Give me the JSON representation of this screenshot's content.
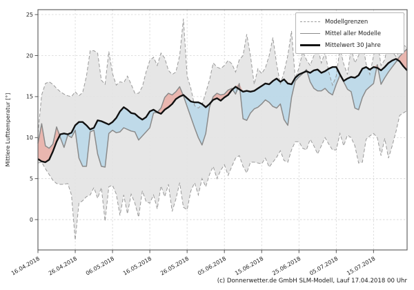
{
  "figure": {
    "y_axis_label": "Mittlere Lufttemperatur [°]",
    "caption": "(c) Donnerwetter.de GmbH SLM-Modell, Lauf 17.04.2018 00 Uhr"
  },
  "legend": {
    "position": "top-right",
    "items": [
      {
        "label": "Modellgrenzen",
        "series": "bounds",
        "swatch": "dashed-gray-line"
      },
      {
        "label": "Mittel aller Modelle",
        "series": "model_mean",
        "swatch": "solid-gray-line"
      },
      {
        "label": "Mittelwert 30 Jahre",
        "series": "mean_30y",
        "swatch": "thick-black-line"
      }
    ]
  },
  "colors": {
    "grid": "#d4d4d4",
    "envelope_fill": "#e3e3e3",
    "bounds_line": "#999999",
    "model_mean_line": "#8a8a8a",
    "mean30_line": "#111111",
    "fill_model_below_mean30": "rgba(165,210,235,0.6)",
    "fill_model_above_mean30": "rgba(235,150,138,0.6)",
    "axis_border": "#555555",
    "text": "#222222"
  },
  "chart_data": {
    "type": "line",
    "title": "",
    "xlabel": "",
    "ylabel": "Mittlere Lufttemperatur [°]",
    "x_unit": "days since 16.04.2018 (daily values)",
    "xlim": [
      0,
      99
    ],
    "ylim": [
      -3.7,
      25.6
    ],
    "grid": true,
    "legend_position": "top-right",
    "y_ticks": [
      0,
      5,
      10,
      15,
      20,
      25
    ],
    "x_ticks": [
      {
        "d": 0,
        "label": "16.04.2018"
      },
      {
        "d": 10,
        "label": "26.04.2018"
      },
      {
        "d": 20,
        "label": "06.05.2018"
      },
      {
        "d": 30,
        "label": "16.05.2018"
      },
      {
        "d": 40,
        "label": "26.05.2018"
      },
      {
        "d": 50,
        "label": "05.06.2018"
      },
      {
        "d": 60,
        "label": "15.06.2018"
      },
      {
        "d": 70,
        "label": "25.06.2018"
      },
      {
        "d": 80,
        "label": "05.07.2018"
      },
      {
        "d": 90,
        "label": "15.07.2018"
      }
    ],
    "series": [
      {
        "name": "Modellgrenzen (obere Grenze)",
        "style": "dashed",
        "values": [
          10.5,
          15.2,
          16.6,
          16.8,
          16.5,
          16.0,
          15.6,
          15.3,
          15.1,
          15.0,
          15.6,
          15.1,
          15.5,
          17.5,
          20.6,
          20.6,
          20.3,
          17.0,
          16.5,
          20.5,
          17.8,
          16.4,
          16.8,
          16.7,
          17.5,
          16.5,
          15.4,
          15.4,
          16.2,
          18.0,
          19.4,
          19.8,
          18.8,
          20.3,
          19.7,
          18.2,
          17.7,
          18.0,
          20.0,
          24.5,
          17.5,
          16.0,
          13.9,
          13.6,
          14.0,
          15.5,
          17.0,
          19.1,
          18.6,
          18.4,
          18.8,
          19.4,
          19.0,
          18.0,
          19.5,
          20.0,
          22.6,
          20.0,
          16.5,
          18.4,
          17.8,
          18.5,
          20.0,
          22.2,
          19.0,
          16.5,
          18.0,
          20.0,
          23.0,
          17.2,
          18.5,
          20.5,
          19.5,
          18.8,
          20.0,
          21.1,
          19.1,
          20.4,
          18.0,
          16.4,
          17.5,
          20.9,
          19.0,
          17.7,
          20.9,
          19.1,
          20.0,
          21.8,
          19.0,
          17.7,
          20.0,
          21.9,
          18.8,
          19.5,
          21.9,
          20.5,
          19.9,
          20.5,
          21.3,
          21.0
        ]
      },
      {
        "name": "Modellgrenzen (untere Grenze)",
        "style": "dashed",
        "values": [
          6.9,
          7.0,
          6.2,
          5.5,
          4.8,
          4.4,
          4.3,
          4.3,
          4.4,
          3.0,
          -2.5,
          2.0,
          2.3,
          2.8,
          3.0,
          3.9,
          2.6,
          3.9,
          -0.2,
          4.0,
          4.2,
          3.1,
          0.5,
          3.0,
          0.7,
          3.1,
          2.0,
          0.3,
          3.5,
          2.2,
          2.0,
          3.0,
          1.3,
          4.1,
          2.8,
          4.3,
          1.0,
          2.5,
          4.5,
          1.5,
          1.2,
          3.5,
          4.5,
          3.0,
          5.0,
          4.0,
          5.5,
          6.5,
          5.0,
          6.0,
          6.7,
          5.4,
          6.5,
          7.5,
          7.8,
          6.5,
          5.7,
          7.0,
          7.0,
          6.9,
          6.8,
          7.5,
          6.4,
          7.0,
          7.6,
          8.4,
          7.2,
          7.0,
          8.5,
          9.5,
          9.5,
          8.7,
          8.5,
          9.8,
          9.0,
          8.0,
          9.0,
          10.0,
          9.2,
          8.5,
          8.5,
          10.5,
          9.0,
          10.3,
          10.0,
          9.0,
          6.9,
          7.0,
          9.8,
          10.2,
          10.5,
          10.0,
          7.8,
          9.9,
          7.5,
          9.0,
          10.7,
          12.7,
          13.0,
          13.3
        ]
      },
      {
        "name": "Mittel aller Modelle",
        "style": "solid-gray",
        "values": [
          9.3,
          11.7,
          9.0,
          8.7,
          9.2,
          11.3,
          10.0,
          8.8,
          10.3,
          10.0,
          10.9,
          7.5,
          6.5,
          6.5,
          10.7,
          10.9,
          8.0,
          6.5,
          6.4,
          10.5,
          10.9,
          10.6,
          10.7,
          11.2,
          11.0,
          10.8,
          10.7,
          9.7,
          10.2,
          10.7,
          11.2,
          13.0,
          13.1,
          13.6,
          14.9,
          15.4,
          15.2,
          15.6,
          16.2,
          15.1,
          13.8,
          12.5,
          11.2,
          10.0,
          9.1,
          10.5,
          13.7,
          15.0,
          15.4,
          15.2,
          15.3,
          15.8,
          16.0,
          15.3,
          16.6,
          12.3,
          12.1,
          13.0,
          13.5,
          13.7,
          14.1,
          14.6,
          14.3,
          13.8,
          13.6,
          14.1,
          12.2,
          11.5,
          14.9,
          16.9,
          17.4,
          17.8,
          18.3,
          16.8,
          16.0,
          15.7,
          15.7,
          16.0,
          15.5,
          15.2,
          16.5,
          17.6,
          16.8,
          15.9,
          15.6,
          13.6,
          13.4,
          14.9,
          15.8,
          16.2,
          16.6,
          18.9,
          16.5,
          17.3,
          18.0,
          18.6,
          19.2,
          19.9,
          20.4,
          20.8
        ]
      },
      {
        "name": "Mittelwert 30 Jahre",
        "style": "solid-black-thick",
        "values": [
          7.4,
          7.1,
          7.0,
          7.3,
          8.3,
          9.5,
          10.4,
          10.5,
          10.4,
          10.6,
          11.5,
          11.9,
          11.9,
          11.5,
          11.0,
          11.2,
          12.1,
          12.0,
          11.8,
          11.6,
          11.9,
          12.4,
          13.2,
          13.7,
          13.4,
          13.0,
          12.9,
          12.5,
          12.2,
          12.5,
          13.2,
          13.4,
          13.1,
          12.9,
          13.4,
          13.7,
          14.1,
          14.7,
          15.0,
          15.2,
          14.8,
          14.4,
          14.3,
          14.3,
          14.1,
          13.7,
          14.1,
          14.6,
          14.8,
          14.5,
          14.9,
          15.2,
          15.8,
          16.2,
          15.9,
          15.6,
          15.7,
          15.6,
          15.7,
          16.0,
          16.3,
          16.6,
          16.5,
          16.9,
          17.2,
          16.8,
          17.1,
          16.6,
          16.5,
          17.3,
          17.7,
          17.9,
          18.1,
          17.9,
          18.2,
          18.3,
          17.9,
          18.1,
          18.4,
          18.6,
          18.6,
          17.7,
          16.9,
          17.2,
          17.4,
          17.3,
          17.6,
          18.4,
          18.6,
          18.3,
          18.6,
          18.5,
          18.2,
          18.6,
          19.1,
          19.4,
          19.6,
          19.3,
          18.7,
          18.2
        ]
      }
    ]
  }
}
